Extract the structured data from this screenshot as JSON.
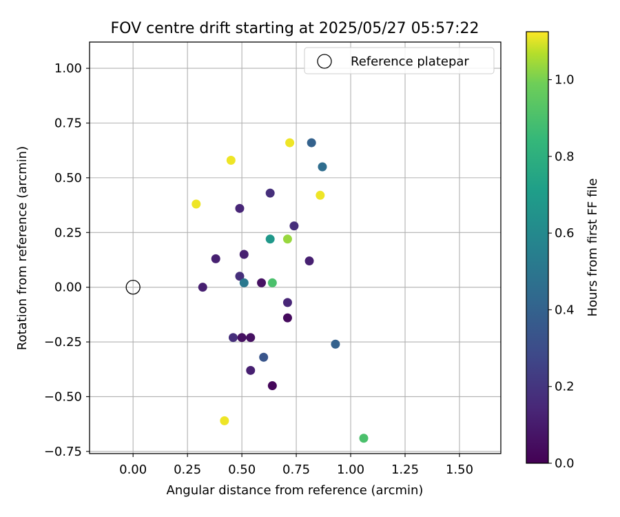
{
  "chart_data": {
    "type": "scatter",
    "title": "FOV centre drift starting at 2025/05/27 05:57:22",
    "xlabel": "Angular distance from reference (arcmin)",
    "ylabel": "Rotation from reference (arcmin)",
    "xlim": [
      -0.2,
      1.69
    ],
    "ylim": [
      -0.76,
      1.12
    ],
    "xticks": [
      "0.00",
      "0.25",
      "0.50",
      "0.75",
      "1.00",
      "1.25",
      "1.50"
    ],
    "yticks": [
      "1.00",
      "0.75",
      "0.50",
      "0.25",
      "0.00",
      "−0.25",
      "−0.50",
      "−0.75"
    ],
    "grid": true,
    "legend": {
      "placement": "top-right",
      "label": "Reference platepar"
    },
    "reference": {
      "x": 0.0,
      "y": 0.0
    },
    "colorbar": {
      "label": "Hours from first FF file",
      "colormap": "viridis",
      "range": [
        0.0,
        1.125
      ],
      "ticks": [
        "0.0",
        "0.2",
        "0.4",
        "0.6",
        "0.8",
        "1.0"
      ]
    },
    "points": [
      {
        "x": 0.72,
        "y": 0.66,
        "h": 1.1
      },
      {
        "x": 0.45,
        "y": 0.58,
        "h": 1.1
      },
      {
        "x": 0.82,
        "y": 0.66,
        "h": 0.35
      },
      {
        "x": 0.87,
        "y": 0.55,
        "h": 0.4
      },
      {
        "x": 0.86,
        "y": 0.42,
        "h": 1.1
      },
      {
        "x": 0.29,
        "y": 0.38,
        "h": 1.1
      },
      {
        "x": 0.63,
        "y": 0.43,
        "h": 0.15
      },
      {
        "x": 0.49,
        "y": 0.36,
        "h": 0.12
      },
      {
        "x": 0.74,
        "y": 0.28,
        "h": 0.15
      },
      {
        "x": 0.63,
        "y": 0.22,
        "h": 0.6
      },
      {
        "x": 0.71,
        "y": 0.22,
        "h": 0.95
      },
      {
        "x": 0.51,
        "y": 0.15,
        "h": 0.1
      },
      {
        "x": 0.38,
        "y": 0.13,
        "h": 0.1
      },
      {
        "x": 0.81,
        "y": 0.12,
        "h": 0.1
      },
      {
        "x": 0.49,
        "y": 0.05,
        "h": 0.15
      },
      {
        "x": 0.51,
        "y": 0.02,
        "h": 0.45
      },
      {
        "x": 0.59,
        "y": 0.02,
        "h": 0.05
      },
      {
        "x": 0.64,
        "y": 0.02,
        "h": 0.8
      },
      {
        "x": 0.32,
        "y": 0.0,
        "h": 0.1
      },
      {
        "x": 0.71,
        "y": -0.07,
        "h": 0.12
      },
      {
        "x": 0.71,
        "y": -0.14,
        "h": 0.03
      },
      {
        "x": 0.46,
        "y": -0.23,
        "h": 0.15
      },
      {
        "x": 0.5,
        "y": -0.23,
        "h": 0.05
      },
      {
        "x": 0.54,
        "y": -0.23,
        "h": 0.05
      },
      {
        "x": 0.93,
        "y": -0.26,
        "h": 0.35
      },
      {
        "x": 0.6,
        "y": -0.32,
        "h": 0.3
      },
      {
        "x": 0.54,
        "y": -0.38,
        "h": 0.1
      },
      {
        "x": 0.64,
        "y": -0.45,
        "h": 0.02
      },
      {
        "x": 0.42,
        "y": -0.61,
        "h": 1.1
      },
      {
        "x": 1.06,
        "y": -0.69,
        "h": 0.8
      }
    ]
  }
}
